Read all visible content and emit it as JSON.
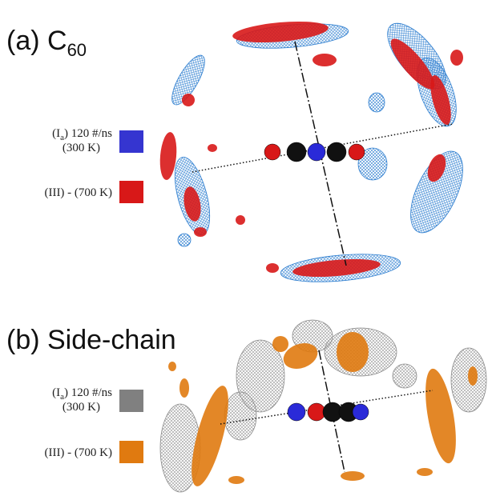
{
  "panels": [
    {
      "label": "(a) C",
      "label_subscript": "60",
      "legend": [
        {
          "prefix": "(I",
          "subscript": "a",
          "suffix": ") 120 #/ns",
          "line2": "(300 K)",
          "color": "#3535d0"
        },
        {
          "prefix": "(III) - (700 K)",
          "color": "#d81818"
        }
      ]
    },
    {
      "label": "(b) Side-chain",
      "legend": [
        {
          "prefix": "(I",
          "subscript": "a",
          "suffix": ") 120 #/ns",
          "line2": "(300 K)",
          "color": "#808080"
        },
        {
          "prefix": "(III) - (700 K)",
          "color": "#e07a10"
        }
      ]
    }
  ]
}
